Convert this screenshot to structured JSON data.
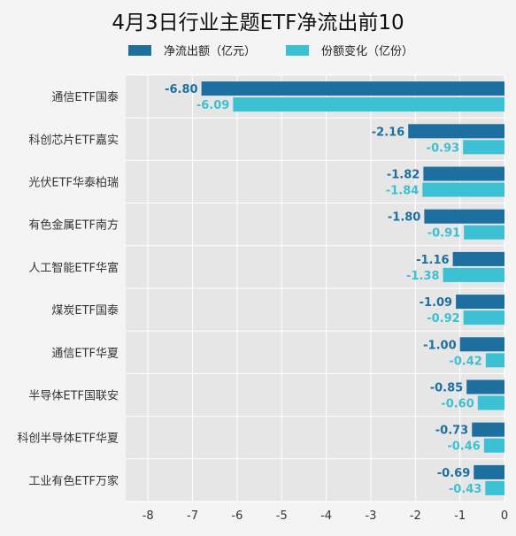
{
  "chart_data": {
    "type": "bar",
    "orientation": "horizontal",
    "title": "4月3日行业主题ETF净流出前10",
    "categories": [
      "通信ETF国泰",
      "科创芯片ETF嘉实",
      "光伏ETF华泰柏瑞",
      "有色金属ETF南方",
      "人工智能ETF华富",
      "煤炭ETF国泰",
      "通信ETF华夏",
      "半导体ETF国联安",
      "科创半导体ETF华夏",
      "工业有色ETF万家"
    ],
    "series": [
      {
        "name": "净流出额（亿元）",
        "color": "#1d6fa0",
        "values": [
          -6.8,
          -2.16,
          -1.82,
          -1.8,
          -1.16,
          -1.09,
          -1.0,
          -0.85,
          -0.73,
          -0.69
        ],
        "labels": [
          "-6.80",
          "-2.16",
          "-1.82",
          "-1.80",
          "-1.16",
          "-1.09",
          "-1.00",
          "-0.85",
          "-0.73",
          "-0.69"
        ]
      },
      {
        "name": "份额变化（亿份）",
        "color": "#3cc0d4",
        "values": [
          -6.09,
          -0.93,
          -1.84,
          -0.91,
          -1.38,
          -0.92,
          -0.42,
          -0.6,
          -0.46,
          -0.43
        ],
        "labels": [
          "-6.09",
          "-0.93",
          "-1.84",
          "-0.91",
          "-1.38",
          "-0.92",
          "-0.42",
          "-0.60",
          "-0.46",
          "-0.43"
        ]
      }
    ],
    "xlim": [
      -8.5,
      0
    ],
    "xticks": [
      -8,
      -7,
      -6,
      -5,
      -4,
      -3,
      -2,
      -1,
      0
    ],
    "xtick_labels": [
      "-8",
      "-7",
      "-6",
      "-5",
      "-4",
      "-3",
      "-2",
      "-1",
      "0"
    ],
    "grid": true,
    "legend_position": "top"
  }
}
